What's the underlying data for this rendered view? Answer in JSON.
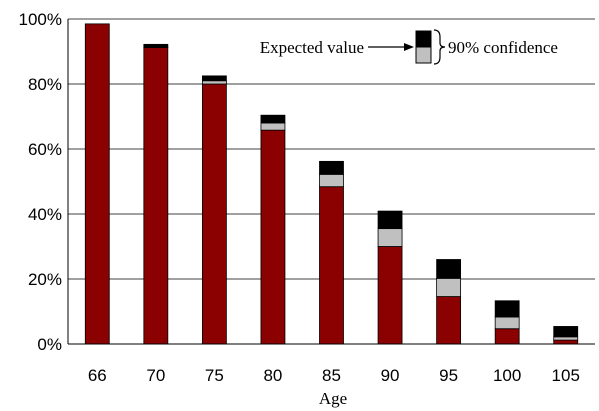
{
  "chart_data": {
    "type": "bar",
    "stacked": true,
    "xlabel": "Age",
    "ylabel": "",
    "ylim": [
      0,
      100
    ],
    "y_tick_labels": [
      "0%",
      "20%",
      "40%",
      "60%",
      "80%",
      "100%"
    ],
    "y_tick_values": [
      0,
      20,
      40,
      60,
      80,
      100
    ],
    "grid": "horizontal",
    "categories": [
      "66",
      "70",
      "75",
      "80",
      "85",
      "90",
      "95",
      "100",
      "105"
    ],
    "series": [
      {
        "name": "",
        "color": "#8b0000",
        "values": [
          98.5,
          91.2,
          80.0,
          65.8,
          48.4,
          30.0,
          14.6,
          4.7,
          1.2
        ]
      },
      {
        "name": "",
        "color": "#c0c0c0",
        "values": [
          0.0,
          0.2,
          1.0,
          2.2,
          3.8,
          5.5,
          5.6,
          3.6,
          1.0
        ]
      },
      {
        "name": "",
        "color": "#000000",
        "values": [
          0.0,
          0.8,
          1.5,
          2.4,
          4.0,
          5.4,
          5.8,
          5.0,
          3.2
        ]
      }
    ],
    "legend": {
      "position": "top-right",
      "left_label": "Expected value",
      "right_label": "90% confidence",
      "swatch_colors": [
        "#000000",
        "#c0c0c0"
      ]
    }
  }
}
